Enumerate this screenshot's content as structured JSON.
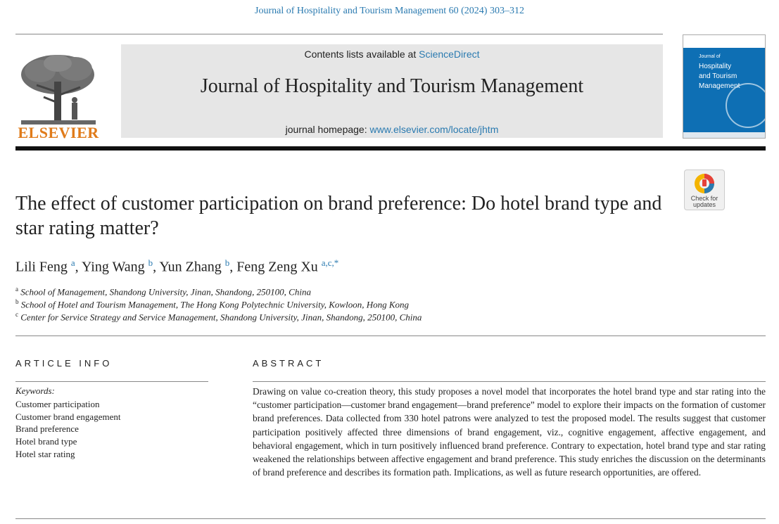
{
  "header": {
    "citation": "Journal of Hospitality and Tourism Management 60 (2024) 303–312",
    "publisher": "ELSEVIER",
    "contents_prefix": "Contents lists available at ",
    "contents_link": "ScienceDirect",
    "journal_title": "Journal of Hospitality and Tourism Management",
    "homepage_prefix": "journal homepage: ",
    "homepage_link": "www.elsevier.com/locate/jhtm",
    "cover_line1": "Journal of",
    "cover_line2": "Hospitality",
    "cover_line3": "and Tourism",
    "cover_line4": "Management",
    "check_updates": "Check for updates"
  },
  "article": {
    "title": "The effect of customer participation on brand preference: Do hotel brand type and star rating matter?",
    "authors": [
      {
        "name": "Lili Feng",
        "sup": "a"
      },
      {
        "name": "Ying Wang",
        "sup": "b"
      },
      {
        "name": "Yun Zhang",
        "sup": "b"
      },
      {
        "name": "Feng Zeng Xu",
        "sup": "a,c,*"
      }
    ],
    "affiliations": [
      {
        "sup": "a",
        "text": "School of Management, Shandong University, Jinan, Shandong, 250100, China"
      },
      {
        "sup": "b",
        "text": "School of Hotel and Tourism Management, The Hong Kong Polytechnic University, Kowloon, Hong Kong"
      },
      {
        "sup": "c",
        "text": "Center for Service Strategy and Service Management, Shandong University, Jinan, Shandong, 250100, China"
      }
    ]
  },
  "info": {
    "heading": "ARTICLE INFO",
    "keywords_label": "Keywords:",
    "keywords": [
      "Customer participation",
      "Customer brand engagement",
      "Brand preference",
      "Hotel brand type",
      "Hotel star rating"
    ]
  },
  "abstract": {
    "heading": "ABSTRACT",
    "text": "Drawing on value co-creation theory, this study proposes a novel model that incorporates the hotel brand type and star rating into the “customer participation—customer brand engagement—brand preference” model to explore their impacts on the formation of customer brand preferences. Data collected from 330 hotel patrons were analyzed to test the proposed model. The results suggest that customer participation positively affected three dimensions of brand engagement, viz., cognitive engagement, affective engagement, and behavioral engagement, which in turn positively influenced brand preference. Contrary to expectation, hotel brand type and star rating weakened the relationships between affective engagement and brand preference. This study enriches the discussion on the determinants of brand preference and describes its formation path. Implications, as well as future research opportunities, are offered."
  }
}
